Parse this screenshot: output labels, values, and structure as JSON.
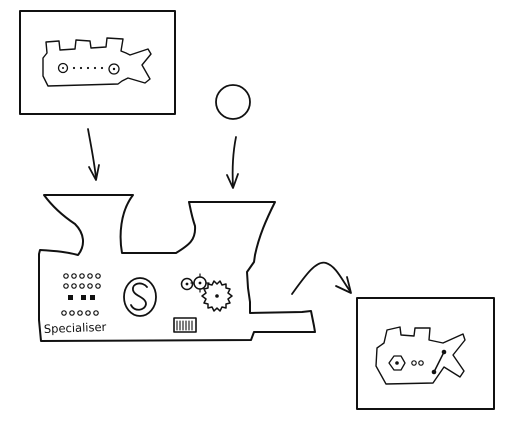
{
  "figure": {
    "description_type": "hand-drawn process sketch",
    "machine_label": "Specialiser"
  },
  "colors": {
    "ink": "#111111",
    "background": "#ffffff"
  }
}
